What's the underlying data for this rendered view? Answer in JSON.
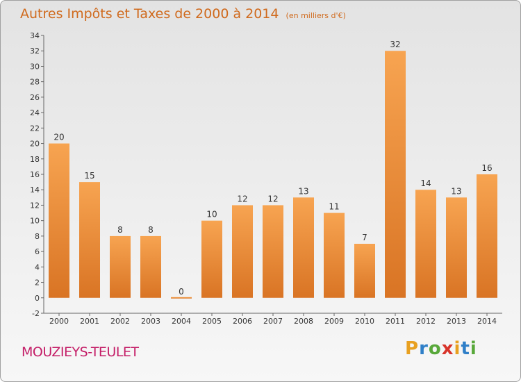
{
  "header": {
    "title": "Autres Impôts et Taxes de 2000 à 2014",
    "subtitle": "(en milliers d'€)"
  },
  "footer": {
    "commune": "MOUZIEYS-TEULET",
    "brand_letters": [
      "P",
      "r",
      "o",
      "x",
      "i",
      "t",
      "i"
    ],
    "brand_colors": [
      "#e8a020",
      "#2f7fc8",
      "#58a83a",
      "#d8342a",
      "#e8a020",
      "#2f7fc8",
      "#58a83a"
    ]
  },
  "colors": {
    "bar_light": "#f7a451",
    "bar_dark": "#d97424",
    "title": "#d06a1d",
    "commune": "#c41d67"
  },
  "chart_data": {
    "type": "bar",
    "categories": [
      "2000",
      "2001",
      "2002",
      "2003",
      "2004",
      "2005",
      "2006",
      "2007",
      "2008",
      "2009",
      "2010",
      "2011",
      "2012",
      "2013",
      "2014"
    ],
    "values": [
      20,
      15,
      8,
      8,
      0,
      10,
      12,
      12,
      13,
      11,
      7,
      32,
      14,
      13,
      16
    ],
    "value_labels": [
      "20",
      "15",
      "8",
      "8",
      "0",
      "10",
      "12",
      "12",
      "13",
      "11",
      "7",
      "32",
      "14",
      "13",
      "16"
    ],
    "y_ticks": [
      "-2",
      "0",
      "2",
      "4",
      "6",
      "8",
      "10",
      "12",
      "14",
      "16",
      "18",
      "20",
      "22",
      "24",
      "26",
      "28",
      "30",
      "32",
      "34"
    ],
    "ylim": [
      -2,
      34
    ],
    "grid": false,
    "title": "Autres Impôts et Taxes de 2000 à 2014",
    "subtitle": "(en milliers d'€)"
  }
}
